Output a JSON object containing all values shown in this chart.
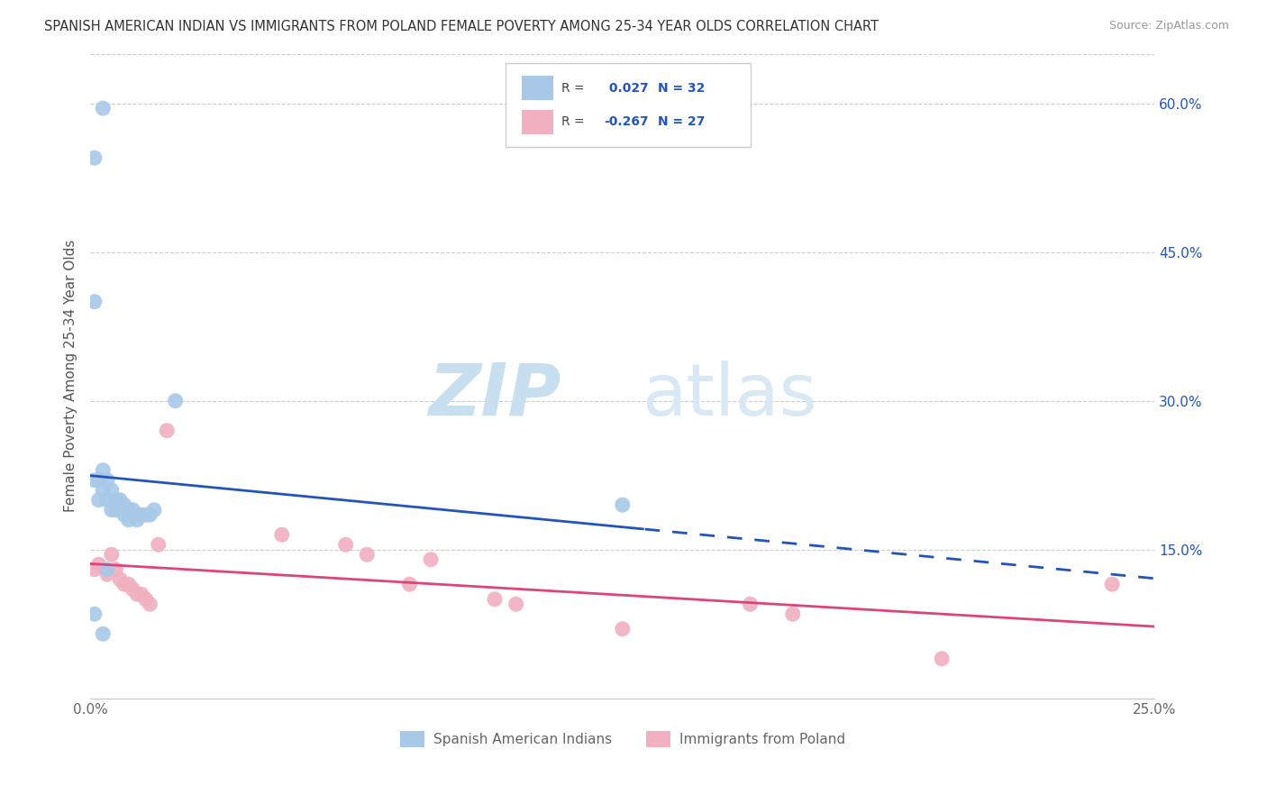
{
  "title": "SPANISH AMERICAN INDIAN VS IMMIGRANTS FROM POLAND FEMALE POVERTY AMONG 25-34 YEAR OLDS CORRELATION CHART",
  "source": "Source: ZipAtlas.com",
  "ylabel": "Female Poverty Among 25-34 Year Olds",
  "xlim": [
    0.0,
    0.25
  ],
  "ylim": [
    0.0,
    0.65
  ],
  "ytick_right_labels": [
    "60.0%",
    "45.0%",
    "30.0%",
    "15.0%"
  ],
  "ytick_right_values": [
    0.6,
    0.45,
    0.3,
    0.15
  ],
  "r_blue": 0.027,
  "n_blue": 32,
  "r_pink": -0.267,
  "n_pink": 27,
  "blue_scatter_x": [
    0.001,
    0.003,
    0.001,
    0.001,
    0.002,
    0.002,
    0.003,
    0.003,
    0.004,
    0.004,
    0.005,
    0.005,
    0.006,
    0.006,
    0.007,
    0.007,
    0.008,
    0.008,
    0.009,
    0.009,
    0.01,
    0.01,
    0.011,
    0.012,
    0.013,
    0.014,
    0.015,
    0.001,
    0.02,
    0.125,
    0.004,
    0.003
  ],
  "blue_scatter_y": [
    0.545,
    0.595,
    0.4,
    0.22,
    0.22,
    0.2,
    0.23,
    0.21,
    0.22,
    0.2,
    0.21,
    0.19,
    0.2,
    0.19,
    0.2,
    0.195,
    0.195,
    0.185,
    0.19,
    0.18,
    0.19,
    0.185,
    0.18,
    0.185,
    0.185,
    0.185,
    0.19,
    0.085,
    0.3,
    0.195,
    0.13,
    0.065
  ],
  "pink_scatter_x": [
    0.001,
    0.002,
    0.004,
    0.005,
    0.006,
    0.007,
    0.008,
    0.009,
    0.01,
    0.011,
    0.012,
    0.013,
    0.014,
    0.016,
    0.018,
    0.045,
    0.06,
    0.065,
    0.075,
    0.08,
    0.095,
    0.1,
    0.125,
    0.155,
    0.165,
    0.2,
    0.24
  ],
  "pink_scatter_y": [
    0.13,
    0.135,
    0.125,
    0.145,
    0.13,
    0.12,
    0.115,
    0.115,
    0.11,
    0.105,
    0.105,
    0.1,
    0.095,
    0.155,
    0.27,
    0.165,
    0.155,
    0.145,
    0.115,
    0.14,
    0.1,
    0.095,
    0.07,
    0.095,
    0.085,
    0.04,
    0.115
  ],
  "bg_color": "#ffffff",
  "grid_color": "#cccccc",
  "blue_color": "#a8c8e8",
  "pink_color": "#f0b0c0",
  "blue_line_color": "#2255bb",
  "pink_line_color": "#dd4477",
  "legend_r_color": "#2255bb",
  "watermark_zip_color": "#c8dff0",
  "watermark_atlas_color": "#d8e8f4"
}
